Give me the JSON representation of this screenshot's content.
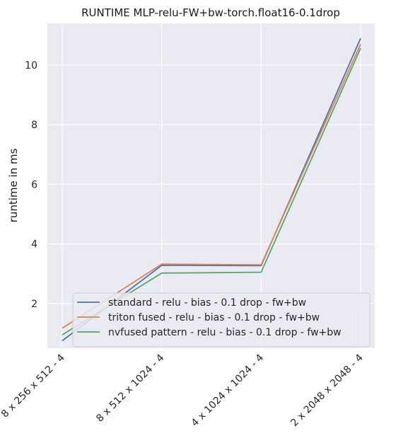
{
  "chart_data": {
    "type": "line",
    "title": "RUNTIME MLP-relu-FW+bw-torch.float16-0.1drop",
    "xlabel": "",
    "ylabel": "runtime in ms",
    "categories": [
      "8 x 256 x 512 - 4",
      "8 x 512 x 1024 - 4",
      "4 x 1024 x 1024 - 4",
      "2 x 2048 x 2048 - 4"
    ],
    "ylim": [
      0.5,
      11.4
    ],
    "yticks": [
      2,
      4,
      6,
      8,
      10
    ],
    "grid": true,
    "legend_position": "lower-right",
    "series": [
      {
        "name": "standard - relu -  bias - 0.1 drop - fw+bw",
        "color": "#4c72b0",
        "values": [
          0.75,
          3.28,
          3.27,
          10.9
        ]
      },
      {
        "name": "triton fused - relu -  bias - 0.1 drop - fw+bw",
        "color": "#dd8452",
        "values": [
          1.17,
          3.32,
          3.3,
          10.7
        ]
      },
      {
        "name": "nvfused pattern - relu -  bias - 0.1 drop - fw+bw",
        "color": "#55a868",
        "values": [
          0.95,
          3.02,
          3.05,
          10.57
        ]
      }
    ]
  }
}
